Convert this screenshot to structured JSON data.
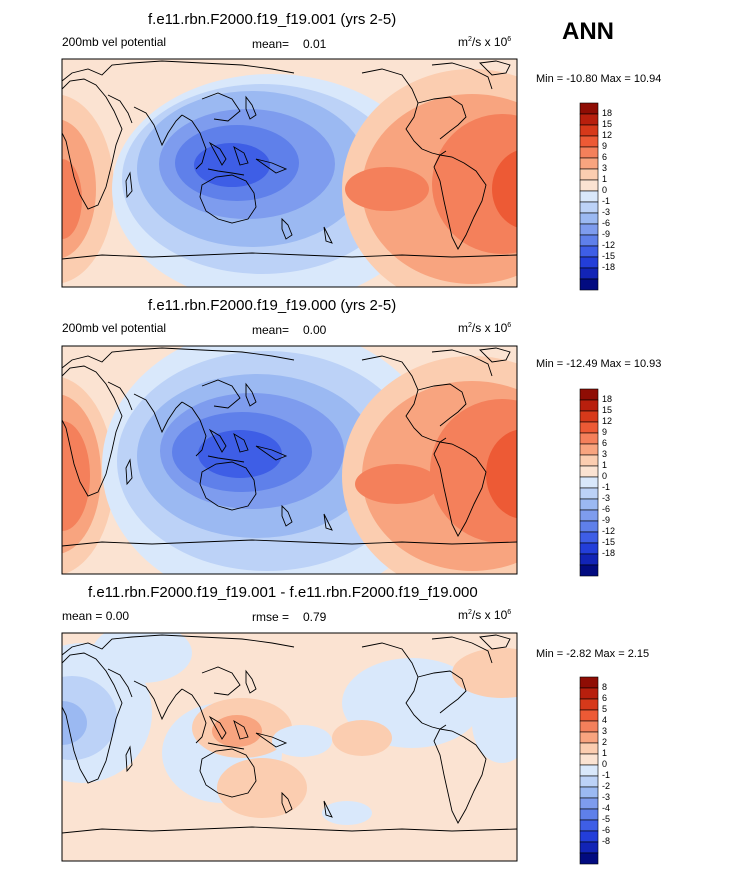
{
  "season": "ANN",
  "units_prefix": "m",
  "units_sup1": "2",
  "units_mid": "/s x 10",
  "units_sup2": "6",
  "colors": {
    "pos": [
      "#fbe3d2",
      "#fbcdb0",
      "#f8a47f",
      "#f4805b",
      "#ed5a35",
      "#d7391a",
      "#b81f0d",
      "#8f0d04"
    ],
    "neg": [
      "#d9e8fb",
      "#bcd2f7",
      "#9bb9f2",
      "#7e9cee",
      "#5f80ea",
      "#3e5ee6",
      "#233ed9",
      "#1224b6",
      "#020b80"
    ]
  },
  "chart_data": [
    {
      "type": "contour-map",
      "title": "f.e11.rbn.F2000.f19_f19.001 (yrs 2-5)",
      "left_label": "200mb vel potential",
      "stat1_label": "mean=",
      "stat1_value": "0.01",
      "min_max": "Min = -10.80 Max =  10.94",
      "colorbar_levels": [
        "18",
        "15",
        "12",
        "9",
        "6",
        "3",
        "1",
        "0",
        "-1",
        "-3",
        "-6",
        "-9",
        "-12",
        "-15",
        "-18"
      ]
    },
    {
      "type": "contour-map",
      "title": "f.e11.rbn.F2000.f19_f19.000 (yrs 2-5)",
      "left_label": "200mb vel potential",
      "stat1_label": "mean=",
      "stat1_value": "0.00",
      "min_max": "Min = -12.49 Max =  10.93",
      "colorbar_levels": [
        "18",
        "15",
        "12",
        "9",
        "6",
        "3",
        "1",
        "0",
        "-1",
        "-3",
        "-6",
        "-9",
        "-12",
        "-15",
        "-18"
      ]
    },
    {
      "type": "contour-map",
      "title": "f.e11.rbn.F2000.f19_f19.001 - f.e11.rbn.F2000.f19_f19.000",
      "left_label": "mean =  0.00",
      "stat1_label": "rmse =",
      "stat1_value": "0.79",
      "min_max": "Min = -2.82 Max =  2.15",
      "colorbar_levels": [
        "8",
        "6",
        "5",
        "4",
        "3",
        "2",
        "1",
        "0",
        "-1",
        "-2",
        "-3",
        "-4",
        "-5",
        "-6",
        "-8"
      ]
    }
  ]
}
